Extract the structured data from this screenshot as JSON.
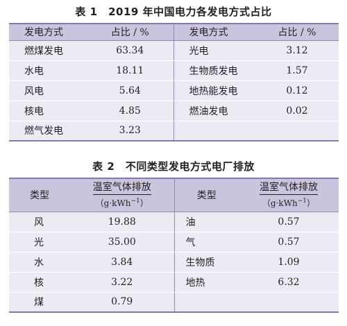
{
  "table1": {
    "caption": "表 1　2019 年中国电力各发电方式占比",
    "header": {
      "type": "发电方式",
      "share": "占比 / %"
    },
    "left_rows": [
      {
        "type": "燃煤发电",
        "value": "63.34"
      },
      {
        "type": "水电",
        "value": "18.11"
      },
      {
        "type": "风电",
        "value": "5.64"
      },
      {
        "type": "核电",
        "value": "4.85"
      },
      {
        "type": "燃气发电",
        "value": "3.23"
      }
    ],
    "right_rows": [
      {
        "type": "光电",
        "value": "3.12"
      },
      {
        "type": "生物质发电",
        "value": "1.57"
      },
      {
        "type": "地热能发电",
        "value": "0.12"
      },
      {
        "type": "燃油发电",
        "value": "0.02"
      },
      {
        "type": "",
        "value": ""
      }
    ]
  },
  "table2": {
    "caption": "表 2　不同类型发电方式电厂排放",
    "header": {
      "type": "类型",
      "emission": "温室气体排放",
      "unit_prefix": "（g·kWh",
      "unit_sup": "−1",
      "unit_suffix": "）"
    },
    "left_rows": [
      {
        "type": "风",
        "value": "19.88"
      },
      {
        "type": "光",
        "value": "35.00"
      },
      {
        "type": "水",
        "value": "3.84"
      },
      {
        "type": "核",
        "value": "3.22"
      },
      {
        "type": "煤",
        "value": "0.79"
      }
    ],
    "right_rows": [
      {
        "type": "油",
        "value": "0.57"
      },
      {
        "type": "气",
        "value": "0.57"
      },
      {
        "type": "生物质",
        "value": "1.09"
      },
      {
        "type": "地热",
        "value": "6.32"
      },
      {
        "type": "",
        "value": ""
      }
    ]
  }
}
